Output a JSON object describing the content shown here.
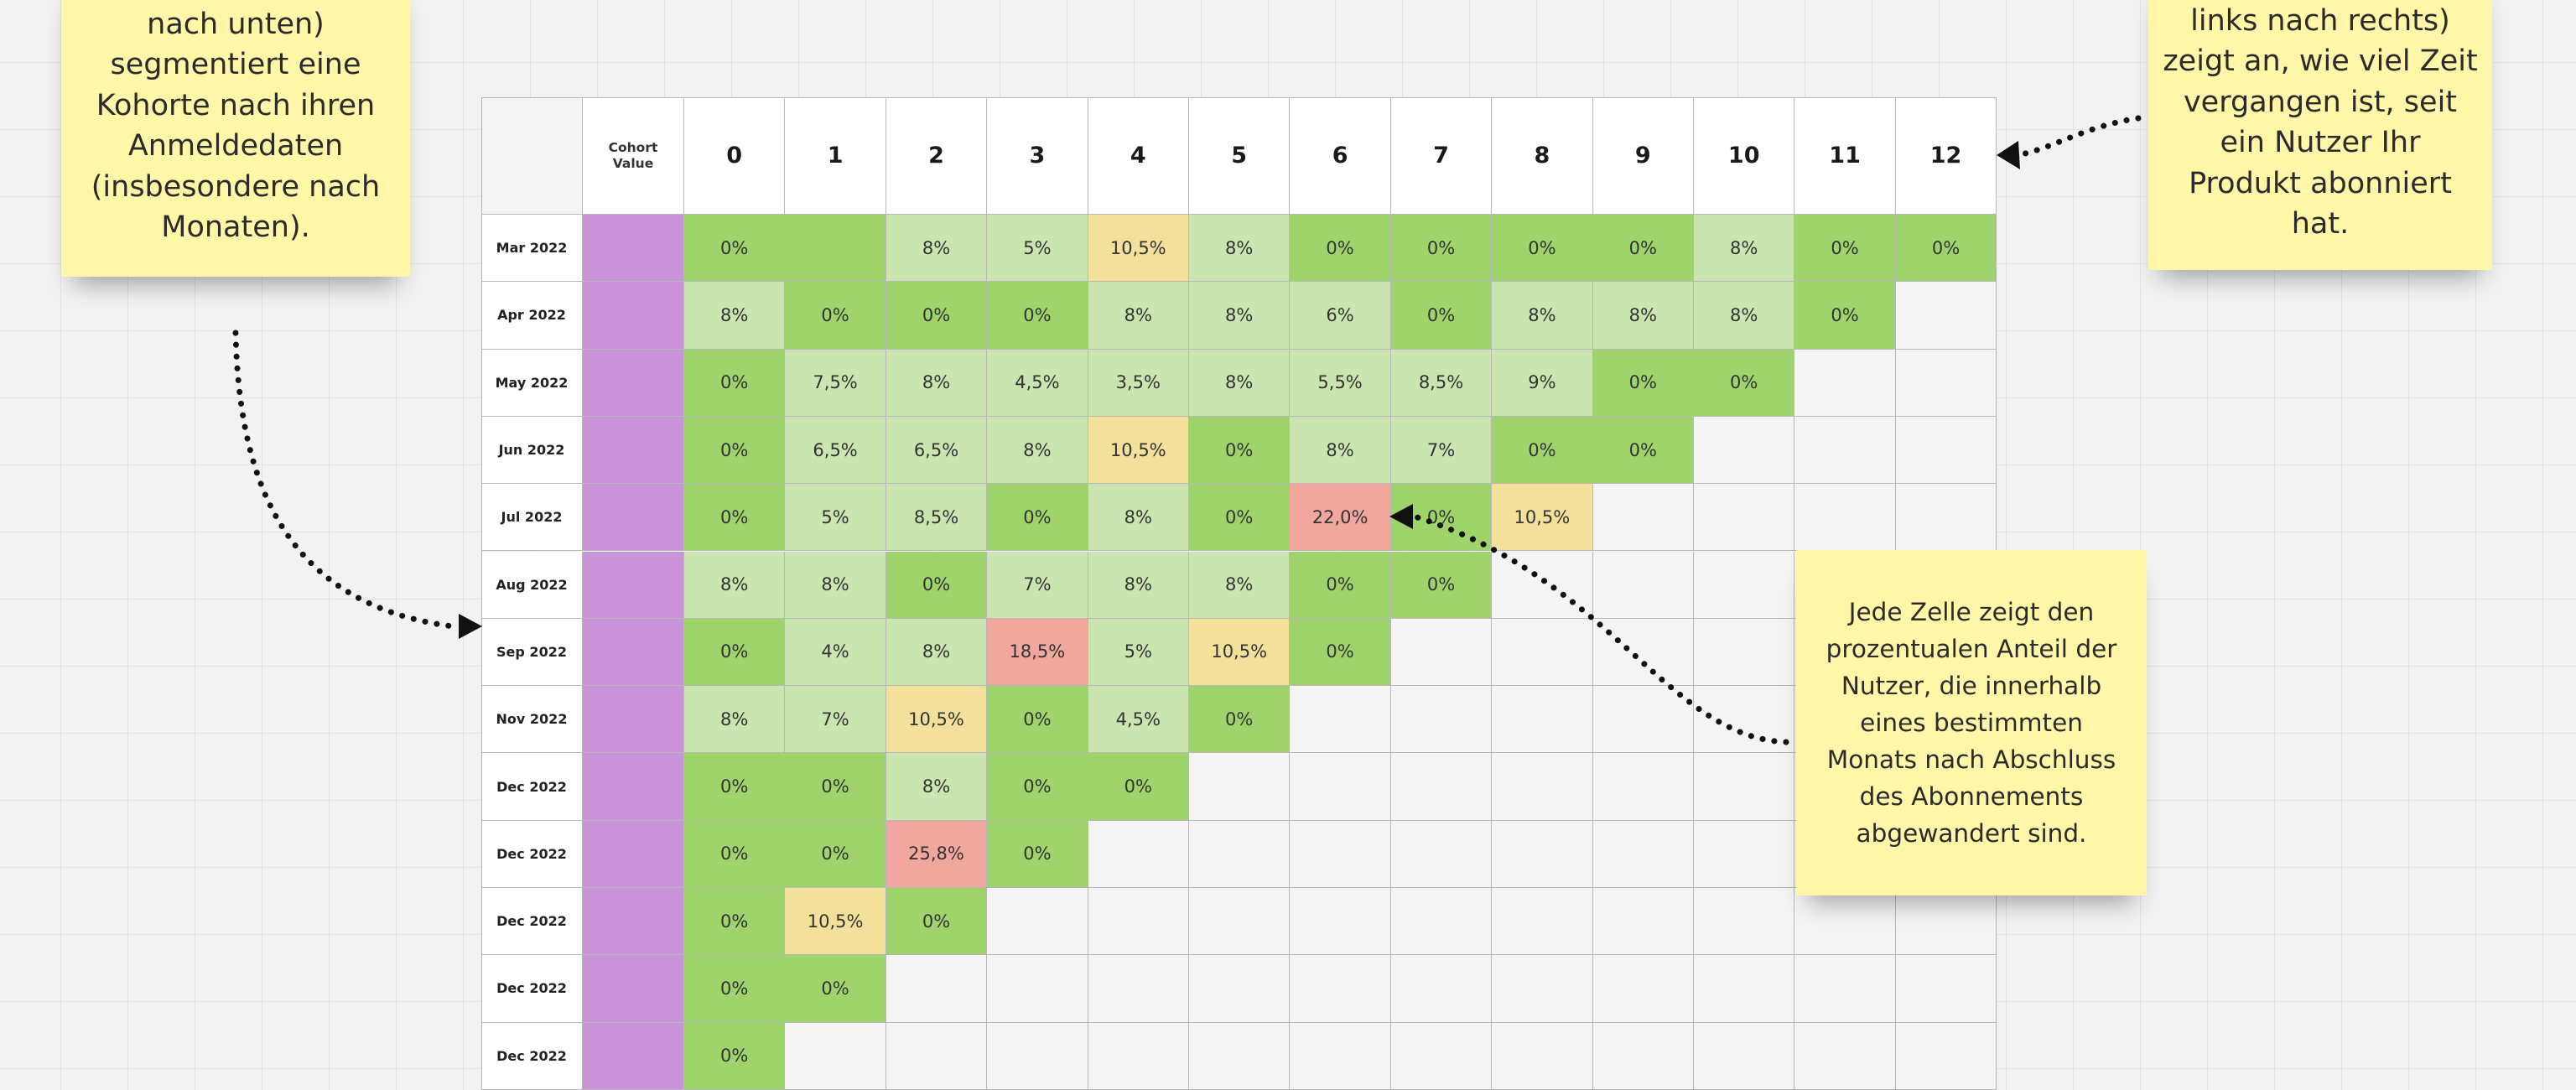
{
  "notes": {
    "left": "nach unten)\nsegmentiert eine\nKohorte nach ihren\nAnmeldedaten\n(insbesondere nach\nMonaten).",
    "right": "links nach rechts)\nzeigt an, wie viel Zeit\nvergangen ist, seit\nein Nutzer Ihr\nProdukt abonniert\nhat.",
    "cell": "Jede Zelle zeigt den\nprozentualen Anteil der\nNutzer, die innerhalb\neines bestimmten\nMonats nach Abschluss\ndes Abonnements\nabgewandert sind."
  },
  "table": {
    "cohort_header": "Cohort\nValue",
    "columns": [
      "0",
      "1",
      "2",
      "3",
      "4",
      "5",
      "6",
      "7",
      "8",
      "9",
      "10",
      "11",
      "12"
    ],
    "rows": [
      {
        "label": "Mar 2022",
        "cells": [
          [
            "0%",
            "g"
          ],
          [
            "",
            "g"
          ],
          [
            "8%",
            "lg"
          ],
          [
            "5%",
            "lg"
          ],
          [
            "10,5%",
            "y"
          ],
          [
            "8%",
            "lg"
          ],
          [
            "0%",
            "g"
          ],
          [
            "0%",
            "g"
          ],
          [
            "0%",
            "g"
          ],
          [
            "0%",
            "g"
          ],
          [
            "8%",
            "lg"
          ],
          [
            "0%",
            "g"
          ],
          [
            "0%",
            "g"
          ]
        ]
      },
      {
        "label": "Apr 2022",
        "cells": [
          [
            "8%",
            "lg"
          ],
          [
            "0%",
            "g"
          ],
          [
            "0%",
            "g"
          ],
          [
            "0%",
            "g"
          ],
          [
            "8%",
            "lg"
          ],
          [
            "8%",
            "lg"
          ],
          [
            "6%",
            "lg"
          ],
          [
            "0%",
            "g"
          ],
          [
            "8%",
            "lg"
          ],
          [
            "8%",
            "lg"
          ],
          [
            "8%",
            "lg"
          ],
          [
            "0%",
            "g"
          ]
        ]
      },
      {
        "label": "May 2022",
        "cells": [
          [
            "0%",
            "g"
          ],
          [
            "7,5%",
            "lg"
          ],
          [
            "8%",
            "lg"
          ],
          [
            "4,5%",
            "lg"
          ],
          [
            "3,5%",
            "lg"
          ],
          [
            "8%",
            "lg"
          ],
          [
            "5,5%",
            "lg"
          ],
          [
            "8,5%",
            "lg"
          ],
          [
            "9%",
            "lg"
          ],
          [
            "0%",
            "g"
          ],
          [
            "0%",
            "g"
          ]
        ]
      },
      {
        "label": "Jun 2022",
        "cells": [
          [
            "0%",
            "g"
          ],
          [
            "6,5%",
            "lg"
          ],
          [
            "6,5%",
            "lg"
          ],
          [
            "8%",
            "lg"
          ],
          [
            "10,5%",
            "y"
          ],
          [
            "0%",
            "g"
          ],
          [
            "8%",
            "lg"
          ],
          [
            "7%",
            "lg"
          ],
          [
            "0%",
            "g"
          ],
          [
            "0%",
            "g"
          ]
        ]
      },
      {
        "label": "Jul 2022",
        "cells": [
          [
            "0%",
            "g"
          ],
          [
            "5%",
            "lg"
          ],
          [
            "8,5%",
            "lg"
          ],
          [
            "0%",
            "g"
          ],
          [
            "8%",
            "lg"
          ],
          [
            "0%",
            "g"
          ],
          [
            "22,0%",
            "r"
          ],
          [
            "0%",
            "g"
          ],
          [
            "10,5%",
            "y"
          ]
        ]
      },
      {
        "label": "Aug 2022",
        "cells": [
          [
            "8%",
            "lg"
          ],
          [
            "8%",
            "lg"
          ],
          [
            "0%",
            "g"
          ],
          [
            "7%",
            "lg"
          ],
          [
            "8%",
            "lg"
          ],
          [
            "8%",
            "lg"
          ],
          [
            "0%",
            "g"
          ],
          [
            "0%",
            "g"
          ]
        ]
      },
      {
        "label": "Sep 2022",
        "cells": [
          [
            "0%",
            "g"
          ],
          [
            "4%",
            "lg"
          ],
          [
            "8%",
            "lg"
          ],
          [
            "18,5%",
            "r"
          ],
          [
            "5%",
            "lg"
          ],
          [
            "10,5%",
            "y"
          ],
          [
            "0%",
            "g"
          ]
        ]
      },
      {
        "label": "Nov 2022",
        "cells": [
          [
            "8%",
            "lg"
          ],
          [
            "7%",
            "lg"
          ],
          [
            "10,5%",
            "y"
          ],
          [
            "0%",
            "g"
          ],
          [
            "4,5%",
            "lg"
          ],
          [
            "0%",
            "g"
          ]
        ]
      },
      {
        "label": "Dec 2022",
        "cells": [
          [
            "0%",
            "g"
          ],
          [
            "0%",
            "g"
          ],
          [
            "8%",
            "lg"
          ],
          [
            "0%",
            "g"
          ],
          [
            "0%",
            "g"
          ]
        ]
      },
      {
        "label": "Dec 2022",
        "cells": [
          [
            "0%",
            "g"
          ],
          [
            "0%",
            "g"
          ],
          [
            "25,8%",
            "r"
          ],
          [
            "0%",
            "g"
          ]
        ]
      },
      {
        "label": "Dec 2022",
        "cells": [
          [
            "0%",
            "g"
          ],
          [
            "10,5%",
            "y"
          ],
          [
            "0%",
            "g"
          ]
        ]
      },
      {
        "label": "Dec 2022",
        "cells": [
          [
            "0%",
            "g"
          ],
          [
            "0%",
            "g"
          ]
        ]
      },
      {
        "label": "Dec 2022",
        "cells": [
          [
            "0%",
            "g"
          ]
        ]
      }
    ]
  },
  "colors": {
    "g": "#9fd46c",
    "lg": "#cbe5b0",
    "y": "#f3e09a",
    "r": "#f1a79e",
    "cohort": "#c994d8",
    "sticky": "#fff6a8"
  }
}
